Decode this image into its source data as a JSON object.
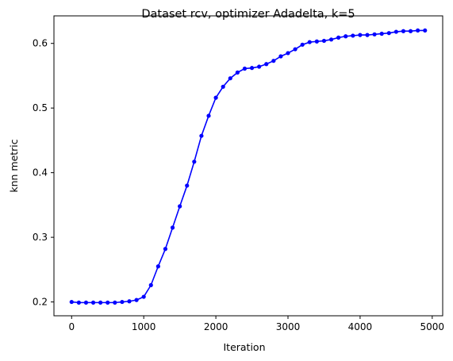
{
  "chart_data": {
    "type": "line",
    "title": "Dataset rcv, optimizer Adadelta, k=5",
    "xlabel": "Iteration",
    "ylabel": "knn metric",
    "xlim": [
      -245,
      5145
    ],
    "ylim": [
      0.1786,
      0.6426
    ],
    "xticks": [
      0,
      1000,
      2000,
      3000,
      4000,
      5000
    ],
    "xtick_labels": [
      "0",
      "1000",
      "2000",
      "3000",
      "4000",
      "5000"
    ],
    "yticks": [
      0.2,
      0.3,
      0.4,
      0.5,
      0.6
    ],
    "ytick_labels": [
      "0.2",
      "0.3",
      "0.4",
      "0.5",
      "0.6"
    ],
    "grid": false,
    "legend": null,
    "series": [
      {
        "color": "#0000ff",
        "marker": "circle",
        "x": [
          0,
          100,
          200,
          300,
          400,
          500,
          600,
          700,
          800,
          900,
          1000,
          1100,
          1200,
          1300,
          1400,
          1500,
          1600,
          1700,
          1800,
          1900,
          2000,
          2100,
          2200,
          2300,
          2400,
          2500,
          2600,
          2700,
          2800,
          2900,
          3000,
          3100,
          3200,
          3300,
          3400,
          3500,
          3600,
          3700,
          3800,
          3900,
          4000,
          4100,
          4200,
          4300,
          4400,
          4500,
          4600,
          4700,
          4800,
          4900
        ],
        "y": [
          0.2,
          0.199,
          0.199,
          0.199,
          0.199,
          0.199,
          0.199,
          0.2,
          0.201,
          0.203,
          0.208,
          0.226,
          0.255,
          0.282,
          0.315,
          0.348,
          0.38,
          0.417,
          0.457,
          0.488,
          0.516,
          0.533,
          0.546,
          0.555,
          0.561,
          0.562,
          0.564,
          0.568,
          0.573,
          0.58,
          0.585,
          0.591,
          0.598,
          0.602,
          0.603,
          0.604,
          0.606,
          0.609,
          0.611,
          0.612,
          0.613,
          0.613,
          0.614,
          0.615,
          0.616,
          0.618,
          0.619,
          0.619,
          0.62,
          0.62
        ]
      }
    ]
  }
}
